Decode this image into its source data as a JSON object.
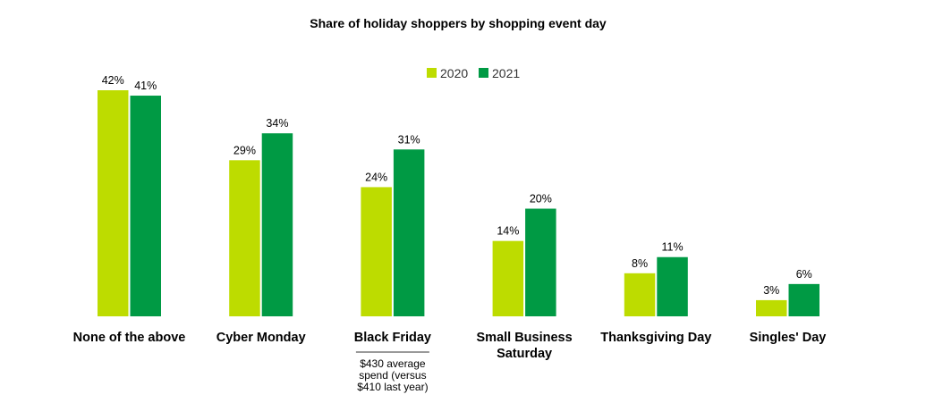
{
  "chart_data": {
    "type": "bar",
    "title": "Share of holiday shoppers by shopping event day",
    "categories": [
      "None of the above",
      "Cyber Monday",
      "Black Friday",
      "Small Business Saturday",
      "Thanksgiving Day",
      "Singles' Day"
    ],
    "category_lines": [
      [
        "None of the above"
      ],
      [
        "Cyber Monday"
      ],
      [
        "Black Friday"
      ],
      [
        "Small Business",
        "Saturday"
      ],
      [
        "Thanksgiving Day"
      ],
      [
        "Singles' Day"
      ]
    ],
    "series": [
      {
        "name": "2020",
        "color": "#BDDC00",
        "values": [
          42,
          29,
          24,
          14,
          8,
          3
        ]
      },
      {
        "name": "2021",
        "color": "#009A44",
        "values": [
          41,
          34,
          31,
          20,
          11,
          6
        ]
      }
    ],
    "value_suffix": "%",
    "ylim": [
      0,
      42
    ],
    "grid": false,
    "legend_position": "top-center",
    "annotation": {
      "category": "Black Friday",
      "lines": [
        "$430 average",
        "spend (versus",
        "$410 last year)"
      ]
    }
  }
}
